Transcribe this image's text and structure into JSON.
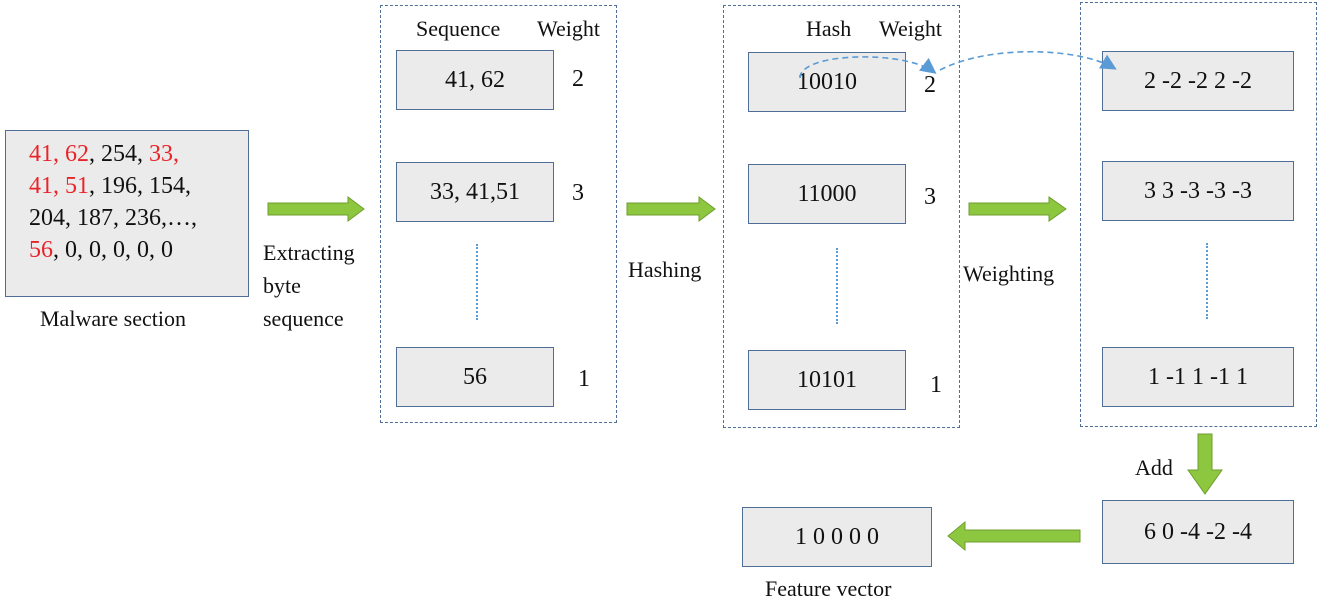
{
  "malware": {
    "label": "Malware section",
    "lines": [
      [
        {
          "t": "41, 62",
          "red": true
        },
        {
          "t": ", 254, ",
          "red": false
        },
        {
          "t": "33,",
          "red": true
        }
      ],
      [
        {
          "t": "41, 51",
          "red": true
        },
        {
          "t": ", 196, 154,",
          "red": false
        }
      ],
      [
        {
          "t": "204, 187, 236,…,",
          "red": false
        }
      ],
      [
        {
          "t": "56",
          "red": true
        },
        {
          "t": ", 0, 0, 0, 0, 0",
          "red": false
        }
      ]
    ]
  },
  "steps": {
    "extracting": [
      "Extracting",
      "byte",
      "sequence"
    ],
    "hashing": "Hashing",
    "weighting": "Weighting",
    "add": "Add"
  },
  "sequence_panel": {
    "header_seq": "Sequence",
    "header_weight": "Weight",
    "rows": [
      {
        "value": "41, 62",
        "weight": "2"
      },
      {
        "value": "33, 41,51",
        "weight": "3"
      },
      {
        "value": "56",
        "weight": "1"
      }
    ]
  },
  "hash_panel": {
    "header_hash": "Hash",
    "header_weight": "Weight",
    "rows": [
      {
        "value": "10010",
        "weight": "2"
      },
      {
        "value": "11000",
        "weight": "3"
      },
      {
        "value": "10101",
        "weight": "1"
      }
    ]
  },
  "weighted_panel": {
    "rows": [
      "2  -2  -2  2  -2",
      "3  3  -3  -3  -3",
      "1  -1  1  -1  1"
    ]
  },
  "sum_box": "6  0  -4  -2  -4",
  "feature": {
    "value": "1  0  0  0  0",
    "label": "Feature vector"
  },
  "colors": {
    "arrow_green": "#8dc63f",
    "box_border": "#4f6f96",
    "box_fill": "#ebebeb",
    "highlight_red": "#e8242a",
    "dotted_blue": "#5b9bd5"
  }
}
